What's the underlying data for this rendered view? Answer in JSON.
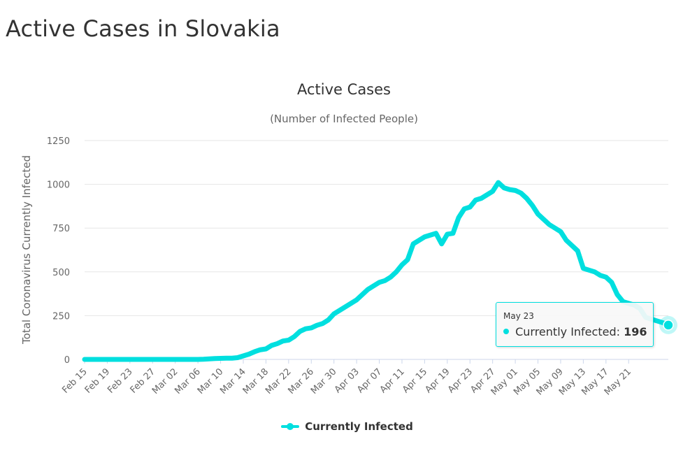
{
  "page": {
    "title": "Active Cases in Slovakia"
  },
  "chart_data": {
    "type": "line",
    "title": "Active Cases",
    "subtitle": "(Number of Infected People)",
    "xlabel": "",
    "ylabel": "Total Coronavirus Currently Infected",
    "ylim": [
      0,
      1250
    ],
    "yticks": [
      "0",
      "250",
      "500",
      "750",
      "1000",
      "1250"
    ],
    "xtick_labels": [
      "Feb 15",
      "Feb 19",
      "Feb 23",
      "Feb 27",
      "Mar 02",
      "Mar 06",
      "Mar 10",
      "Mar 14",
      "Mar 18",
      "Mar 22",
      "Mar 26",
      "Mar 30",
      "Apr 03",
      "Apr 07",
      "Apr 11",
      "Apr 15",
      "Apr 19",
      "Apr 23",
      "Apr 27",
      "May 01",
      "May 05",
      "May 09",
      "May 13",
      "May 17",
      "May 21"
    ],
    "grid": true,
    "legend_position": "bottom-center",
    "series": [
      {
        "name": "Currently Infected",
        "color": "#00dfdf",
        "start_date": "Feb 15",
        "values": [
          0,
          0,
          0,
          0,
          0,
          0,
          0,
          0,
          0,
          0,
          0,
          0,
          0,
          0,
          0,
          0,
          0,
          0,
          0,
          0,
          0,
          1,
          3,
          5,
          6,
          7,
          7,
          10,
          20,
          30,
          44,
          55,
          60,
          80,
          90,
          105,
          110,
          130,
          160,
          175,
          180,
          195,
          205,
          225,
          260,
          280,
          300,
          320,
          340,
          370,
          400,
          420,
          440,
          450,
          470,
          500,
          540,
          570,
          660,
          680,
          700,
          710,
          720,
          660,
          715,
          720,
          810,
          860,
          870,
          910,
          920,
          940,
          960,
          1010,
          980,
          970,
          965,
          950,
          920,
          880,
          830,
          800,
          770,
          750,
          730,
          680,
          650,
          620,
          520,
          510,
          500,
          480,
          470,
          440,
          370,
          330,
          320,
          310,
          290,
          240,
          230,
          220,
          210,
          196
        ]
      }
    ]
  },
  "tooltip": {
    "date": "May 23",
    "series_name": "Currently Infected:",
    "value": "196"
  },
  "legend": {
    "label": "Currently Infected"
  }
}
